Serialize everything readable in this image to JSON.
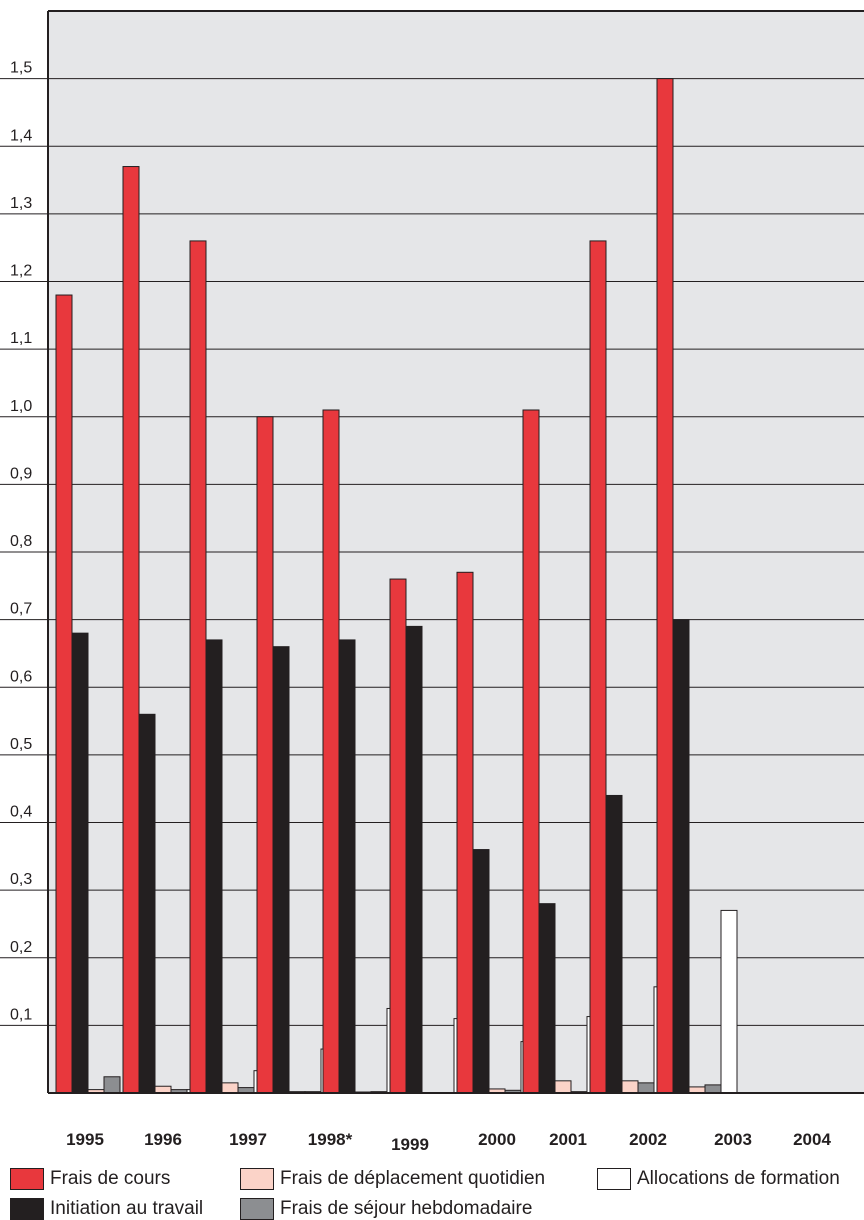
{
  "chart_data": {
    "type": "bar",
    "categories": [
      "1995",
      "1996",
      "1997",
      "1998*",
      "1999",
      "2000",
      "2001",
      "2002",
      "2003",
      "2004"
    ],
    "y_ticks": [
      "0,1",
      "0,2",
      "0,3",
      "0,4",
      "0,5",
      "0,6",
      "0,7",
      "0,8",
      "0,9",
      "1,0",
      "1,1",
      "1,2",
      "1,3",
      "1,4",
      "1,5"
    ],
    "ylim": [
      0,
      1.6
    ],
    "grid": true,
    "legend_position": "bottom",
    "series": [
      {
        "name": "Frais de cours",
        "color": "#e8383d",
        "values": [
          1.18,
          1.37,
          1.26,
          1.0,
          1.01,
          0.76,
          0.77,
          1.01,
          1.26,
          1.5
        ]
      },
      {
        "name": "Frais de déplacement quotidien",
        "color": "#fbd3c8",
        "values": [
          0.005,
          0.01,
          0.015,
          0.002,
          0.001,
          0.0,
          0.006,
          0.018,
          0.018,
          0.009
        ]
      },
      {
        "name": "Frais de séjour hebdomadaire",
        "color": "#8c8e91",
        "values": [
          0.024,
          0.005,
          0.008,
          0.002,
          0.002,
          0.0,
          0.004,
          0.002,
          0.015,
          0.012
        ]
      },
      {
        "name": "Allocations de formation",
        "color": "#ffffff",
        "values": [
          0.0,
          0.005,
          0.033,
          0.065,
          0.125,
          0.11,
          0.076,
          0.113,
          0.157,
          0.27
        ]
      },
      {
        "name": "Initiation au travail",
        "color": "#231f20",
        "values": [
          0.68,
          0.56,
          0.67,
          0.66,
          0.67,
          0.69,
          0.36,
          0.28,
          0.44,
          0.7
        ]
      }
    ]
  }
}
